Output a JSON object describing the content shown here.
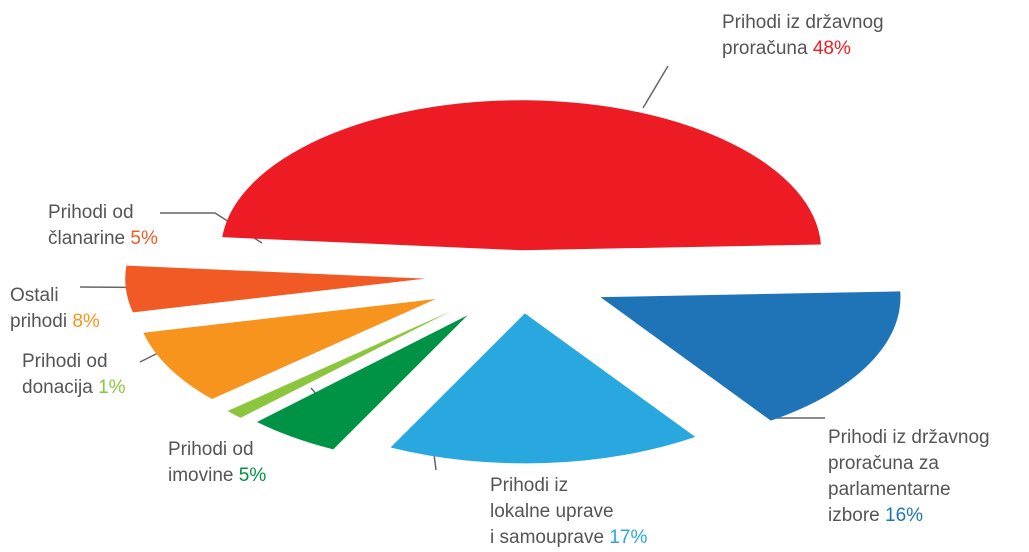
{
  "chart_data": {
    "type": "pie",
    "categories": [
      "Prihodi iz državnog\nproračuna",
      "Prihodi iz državnog\nproračuna za\nparlamentarne\nizbore",
      "Prihodi iz\nlokalne uprave\ni samouprave",
      "Prihodi od\nimovine",
      "Prihodi od\ndonacija",
      "Ostali\nprihodi",
      "Prihodi od\nčlanarine"
    ],
    "values": [
      48,
      16,
      17,
      5,
      1,
      8,
      5
    ],
    "value_labels": [
      "48%",
      "16%",
      "17%",
      "5%",
      "1%",
      "8%",
      "5%"
    ],
    "colors": [
      "#ed1c24",
      "#1f73b7",
      "#29a8e0",
      "#009245",
      "#8cc63f",
      "#f7941d",
      "#f15a24"
    ]
  }
}
